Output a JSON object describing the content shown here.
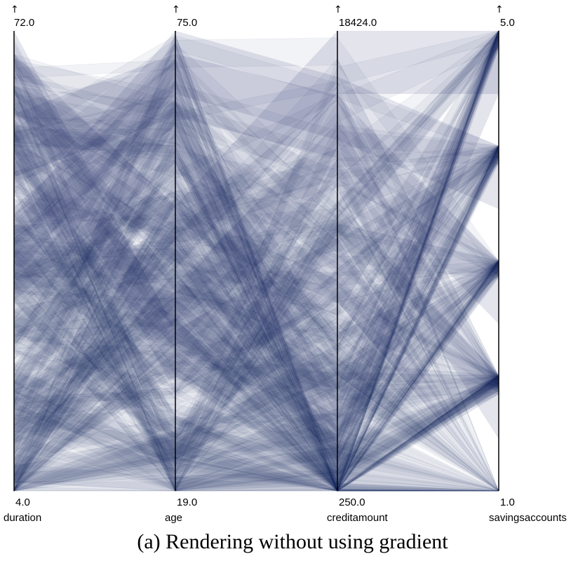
{
  "chart_data": {
    "type": "parallel-coordinates",
    "band_color": "#1b2463",
    "axes": [
      {
        "name": "duration",
        "max": "72.0",
        "min": "4.0"
      },
      {
        "name": "age",
        "max": "75.0",
        "min": "19.0"
      },
      {
        "name": "creditamount",
        "max": "18424.0",
        "min": "250.0"
      },
      {
        "name": "savingsaccounts",
        "max": "5.0",
        "min": "1.0"
      }
    ]
  },
  "caption": "(a)  Rendering without using gradient"
}
